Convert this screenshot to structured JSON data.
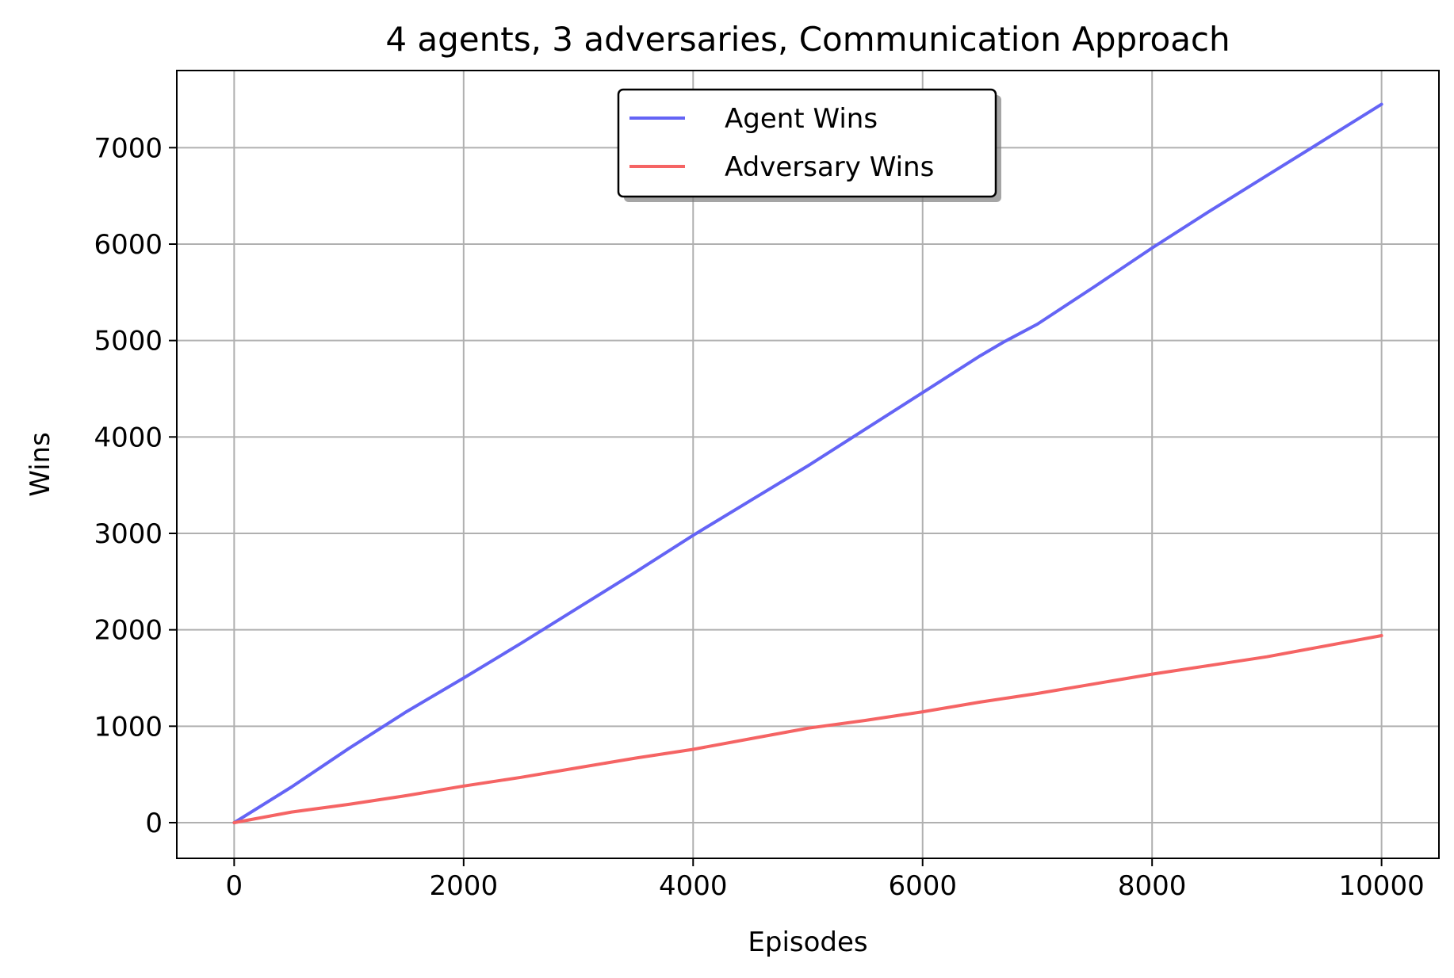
{
  "chart_data": {
    "type": "line",
    "title": "4 agents, 3 adversaries, Communication Approach",
    "xlabel": "Episodes",
    "ylabel": "Wins",
    "xlim": [
      -500,
      10500
    ],
    "ylim": [
      -370,
      7800
    ],
    "x_ticks": [
      0,
      2000,
      4000,
      6000,
      8000,
      10000
    ],
    "y_ticks": [
      0,
      1000,
      2000,
      3000,
      4000,
      5000,
      6000,
      7000
    ],
    "grid": true,
    "legend_position": "upper-center",
    "series": [
      {
        "name": "Agent Wins",
        "color": "#6464f5",
        "x": [
          0,
          500,
          1000,
          1500,
          2000,
          2500,
          3000,
          3500,
          4000,
          4500,
          5000,
          5500,
          6000,
          6500,
          6700,
          7000,
          7500,
          8000,
          8500,
          9000,
          9500,
          10000
        ],
        "y": [
          0,
          370,
          770,
          1150,
          1500,
          1860,
          2230,
          2600,
          2980,
          3340,
          3700,
          4080,
          4460,
          4840,
          4980,
          5170,
          5560,
          5960,
          6340,
          6710,
          7080,
          7450
        ]
      },
      {
        "name": "Adversary Wins",
        "color": "#f56464",
        "x": [
          0,
          500,
          1000,
          1500,
          2000,
          2500,
          3000,
          3500,
          4000,
          4500,
          5000,
          5500,
          6000,
          6500,
          7000,
          7500,
          8000,
          8500,
          9000,
          9500,
          10000
        ],
        "y": [
          0,
          110,
          190,
          280,
          380,
          470,
          570,
          670,
          760,
          870,
          980,
          1060,
          1150,
          1250,
          1340,
          1440,
          1540,
          1630,
          1720,
          1830,
          1940
        ]
      }
    ]
  }
}
